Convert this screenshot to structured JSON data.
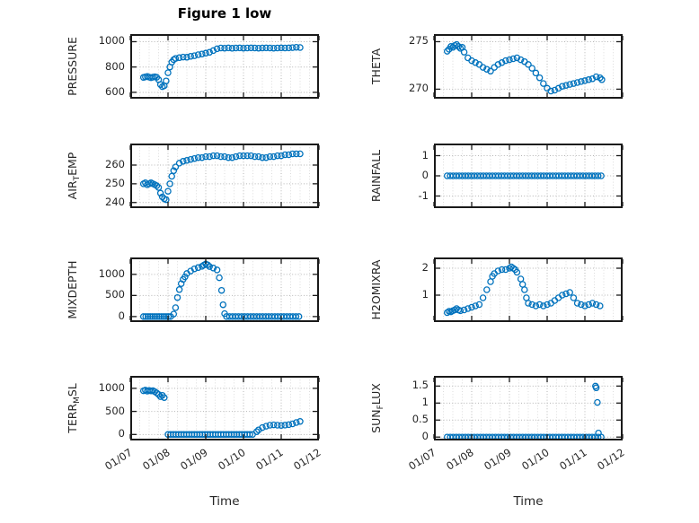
{
  "figure": {
    "window_note": "static matlab-style figure"
  },
  "chart_data": {
    "type": "scatter",
    "title": "Figure 1 low",
    "xlabel": "Time",
    "style": {
      "marker_color": "#0072BD",
      "axis_color": "#1a1a1a",
      "grid_color": "#b5b5b5",
      "minor_grid_color": "#dcdcdc",
      "background": "#ffffff"
    },
    "x_axis": {
      "lim": [
        7,
        12
      ],
      "tick_values": [
        7,
        8,
        9,
        10,
        11,
        12
      ],
      "tick_labels": [
        "01/07",
        "01/08",
        "01/09",
        "01/10",
        "01/11",
        "01/12"
      ]
    },
    "subplots": [
      {
        "id": "pressure",
        "name": "PRESSURE",
        "ylabel_segments": [
          {
            "t": "PRESSURE"
          }
        ],
        "ylim": [
          550,
          1060
        ],
        "yticks": [
          600,
          800,
          1000
        ],
        "points": [
          [
            7.35,
            718
          ],
          [
            7.4,
            722
          ],
          [
            7.45,
            725
          ],
          [
            7.5,
            720
          ],
          [
            7.55,
            716
          ],
          [
            7.6,
            720
          ],
          [
            7.65,
            723
          ],
          [
            7.7,
            719
          ],
          [
            7.75,
            700
          ],
          [
            7.8,
            662
          ],
          [
            7.85,
            645
          ],
          [
            7.9,
            652
          ],
          [
            7.95,
            690
          ],
          [
            8.0,
            755
          ],
          [
            8.05,
            800
          ],
          [
            8.1,
            838
          ],
          [
            8.15,
            858
          ],
          [
            8.2,
            868
          ],
          [
            8.3,
            874
          ],
          [
            8.4,
            879
          ],
          [
            8.5,
            877
          ],
          [
            8.6,
            884
          ],
          [
            8.7,
            889
          ],
          [
            8.8,
            897
          ],
          [
            8.9,
            903
          ],
          [
            9.0,
            909
          ],
          [
            9.1,
            916
          ],
          [
            9.2,
            930
          ],
          [
            9.3,
            944
          ],
          [
            9.4,
            950
          ],
          [
            9.5,
            949
          ],
          [
            9.6,
            951
          ],
          [
            9.7,
            948
          ],
          [
            9.8,
            950
          ],
          [
            9.9,
            951
          ],
          [
            10.0,
            949
          ],
          [
            10.1,
            950
          ],
          [
            10.2,
            951
          ],
          [
            10.3,
            950
          ],
          [
            10.4,
            949
          ],
          [
            10.5,
            950
          ],
          [
            10.6,
            951
          ],
          [
            10.7,
            950
          ],
          [
            10.8,
            949
          ],
          [
            10.9,
            950
          ],
          [
            11.0,
            951
          ],
          [
            11.1,
            950
          ],
          [
            11.2,
            951
          ],
          [
            11.3,
            953
          ],
          [
            11.4,
            956
          ],
          [
            11.5,
            954
          ]
        ],
        "const_runs": []
      },
      {
        "id": "theta",
        "name": "THETA",
        "ylabel_segments": [
          {
            "t": "THETA"
          }
        ],
        "ylim": [
          269,
          275.8
        ],
        "yticks": [
          270,
          275
        ],
        "points": [
          [
            7.35,
            274.0
          ],
          [
            7.4,
            274.2
          ],
          [
            7.45,
            274.5
          ],
          [
            7.5,
            274.4
          ],
          [
            7.55,
            274.6
          ],
          [
            7.6,
            274.7
          ],
          [
            7.65,
            274.5
          ],
          [
            7.7,
            274.3
          ],
          [
            7.75,
            274.4
          ],
          [
            7.8,
            273.9
          ],
          [
            7.9,
            273.3
          ],
          [
            8.0,
            273.0
          ],
          [
            8.1,
            272.8
          ],
          [
            8.2,
            272.6
          ],
          [
            8.3,
            272.3
          ],
          [
            8.4,
            272.1
          ],
          [
            8.5,
            271.9
          ],
          [
            8.6,
            272.3
          ],
          [
            8.7,
            272.6
          ],
          [
            8.8,
            272.8
          ],
          [
            8.9,
            273.0
          ],
          [
            9.0,
            273.1
          ],
          [
            9.1,
            273.2
          ],
          [
            9.2,
            273.3
          ],
          [
            9.3,
            273.1
          ],
          [
            9.4,
            272.9
          ],
          [
            9.5,
            272.6
          ],
          [
            9.6,
            272.2
          ],
          [
            9.7,
            271.7
          ],
          [
            9.8,
            271.2
          ],
          [
            9.9,
            270.6
          ],
          [
            10.0,
            270.1
          ],
          [
            10.1,
            269.8
          ],
          [
            10.2,
            269.9
          ],
          [
            10.3,
            270.1
          ],
          [
            10.4,
            270.3
          ],
          [
            10.5,
            270.4
          ],
          [
            10.6,
            270.5
          ],
          [
            10.7,
            270.6
          ],
          [
            10.8,
            270.7
          ],
          [
            10.9,
            270.8
          ],
          [
            11.0,
            270.9
          ],
          [
            11.1,
            271.0
          ],
          [
            11.2,
            271.1
          ],
          [
            11.3,
            271.3
          ],
          [
            11.4,
            271.2
          ],
          [
            11.45,
            271.0
          ]
        ],
        "const_runs": []
      },
      {
        "id": "air-temp",
        "name": "AIR_TEMP",
        "ylabel_segments": [
          {
            "t": "AIR"
          },
          {
            "t": "T",
            "sub": true
          },
          {
            "t": "EMP"
          }
        ],
        "ylim": [
          237,
          271.5
        ],
        "yticks": [
          240,
          250,
          260
        ],
        "points": [
          [
            7.35,
            250
          ],
          [
            7.4,
            250.5
          ],
          [
            7.45,
            249.5
          ],
          [
            7.5,
            250
          ],
          [
            7.55,
            250.5
          ],
          [
            7.6,
            250
          ],
          [
            7.65,
            249.5
          ],
          [
            7.7,
            249
          ],
          [
            7.75,
            248
          ],
          [
            7.8,
            245
          ],
          [
            7.85,
            243
          ],
          [
            7.9,
            242
          ],
          [
            7.95,
            241.5
          ],
          [
            8.0,
            246
          ],
          [
            8.05,
            250
          ],
          [
            8.1,
            254
          ],
          [
            8.15,
            257
          ],
          [
            8.2,
            259
          ],
          [
            8.3,
            261
          ],
          [
            8.4,
            262
          ],
          [
            8.5,
            262.5
          ],
          [
            8.6,
            263
          ],
          [
            8.7,
            263.5
          ],
          [
            8.8,
            264
          ],
          [
            8.9,
            264
          ],
          [
            9.0,
            264.5
          ],
          [
            9.1,
            264.5
          ],
          [
            9.2,
            265
          ],
          [
            9.3,
            265
          ],
          [
            9.4,
            264.5
          ],
          [
            9.5,
            264.5
          ],
          [
            9.6,
            264
          ],
          [
            9.7,
            264
          ],
          [
            9.8,
            264.5
          ],
          [
            9.9,
            265
          ],
          [
            10.0,
            265
          ],
          [
            10.1,
            265
          ],
          [
            10.2,
            265
          ],
          [
            10.3,
            264.5
          ],
          [
            10.4,
            264.5
          ],
          [
            10.5,
            264
          ],
          [
            10.6,
            264
          ],
          [
            10.7,
            264.5
          ],
          [
            10.8,
            264.5
          ],
          [
            10.9,
            265
          ],
          [
            11.0,
            265
          ],
          [
            11.1,
            265.5
          ],
          [
            11.2,
            265.5
          ],
          [
            11.3,
            266
          ],
          [
            11.4,
            266
          ],
          [
            11.5,
            266
          ]
        ],
        "const_runs": []
      },
      {
        "id": "rainfall",
        "name": "RAINFALL",
        "ylabel_segments": [
          {
            "t": "RAINFALL"
          }
        ],
        "ylim": [
          -1.6,
          1.6
        ],
        "yticks": [
          -1,
          0,
          1
        ],
        "points": [],
        "const_runs": [
          [
            7.35,
            11.5,
            0.08,
            0
          ]
        ]
      },
      {
        "id": "mixdepth",
        "name": "MIXDEPTH",
        "ylabel_segments": [
          {
            "t": "MIXDEPTH"
          }
        ],
        "ylim": [
          -130,
          1400
        ],
        "yticks": [
          0,
          500,
          1000
        ],
        "points": [
          [
            8.15,
            60
          ],
          [
            8.2,
            210
          ],
          [
            8.25,
            450
          ],
          [
            8.3,
            640
          ],
          [
            8.35,
            780
          ],
          [
            8.4,
            880
          ],
          [
            8.45,
            940
          ],
          [
            8.5,
            1020
          ],
          [
            8.6,
            1080
          ],
          [
            8.7,
            1130
          ],
          [
            8.8,
            1160
          ],
          [
            8.9,
            1190
          ],
          [
            8.95,
            1220
          ],
          [
            9.0,
            1245
          ],
          [
            9.05,
            1225
          ],
          [
            9.1,
            1185
          ],
          [
            9.2,
            1150
          ],
          [
            9.3,
            1105
          ],
          [
            9.36,
            920
          ],
          [
            9.42,
            620
          ],
          [
            9.46,
            280
          ],
          [
            9.5,
            70
          ]
        ],
        "const_runs": [
          [
            7.35,
            8.1,
            0.06,
            0
          ],
          [
            9.55,
            11.5,
            0.08,
            0
          ]
        ]
      },
      {
        "id": "h2omixra",
        "name": "H2OMIXRA",
        "ylabel_segments": [
          {
            "t": "H2OMIXRA"
          }
        ],
        "ylim": [
          0,
          2.4
        ],
        "yticks": [
          1,
          2
        ],
        "points": [
          [
            7.35,
            0.35
          ],
          [
            7.4,
            0.4
          ],
          [
            7.45,
            0.38
          ],
          [
            7.5,
            0.42
          ],
          [
            7.55,
            0.45
          ],
          [
            7.6,
            0.5
          ],
          [
            7.65,
            0.45
          ],
          [
            7.7,
            0.42
          ],
          [
            7.8,
            0.45
          ],
          [
            7.9,
            0.5
          ],
          [
            8.0,
            0.55
          ],
          [
            8.1,
            0.6
          ],
          [
            8.2,
            0.65
          ],
          [
            8.3,
            0.9
          ],
          [
            8.4,
            1.2
          ],
          [
            8.5,
            1.5
          ],
          [
            8.55,
            1.7
          ],
          [
            8.6,
            1.8
          ],
          [
            8.7,
            1.9
          ],
          [
            8.8,
            1.95
          ],
          [
            8.9,
            1.95
          ],
          [
            9.0,
            2.0
          ],
          [
            9.05,
            2.05
          ],
          [
            9.1,
            2.0
          ],
          [
            9.15,
            1.95
          ],
          [
            9.2,
            1.85
          ],
          [
            9.3,
            1.6
          ],
          [
            9.35,
            1.4
          ],
          [
            9.4,
            1.2
          ],
          [
            9.45,
            0.9
          ],
          [
            9.5,
            0.7
          ],
          [
            9.6,
            0.65
          ],
          [
            9.7,
            0.6
          ],
          [
            9.8,
            0.65
          ],
          [
            9.9,
            0.6
          ],
          [
            10.0,
            0.65
          ],
          [
            10.1,
            0.7
          ],
          [
            10.2,
            0.8
          ],
          [
            10.3,
            0.9
          ],
          [
            10.4,
            1.0
          ],
          [
            10.5,
            1.05
          ],
          [
            10.6,
            1.1
          ],
          [
            10.7,
            0.9
          ],
          [
            10.8,
            0.7
          ],
          [
            10.9,
            0.65
          ],
          [
            11.0,
            0.6
          ],
          [
            11.1,
            0.65
          ],
          [
            11.2,
            0.7
          ],
          [
            11.3,
            0.65
          ],
          [
            11.4,
            0.6
          ]
        ],
        "const_runs": []
      },
      {
        "id": "terr-msl",
        "name": "TERR_MSL",
        "ylabel_segments": [
          {
            "t": "TERR"
          },
          {
            "t": "M",
            "sub": true
          },
          {
            "t": "SL"
          }
        ],
        "ylim": [
          -130,
          1270
        ],
        "yticks": [
          0,
          500,
          1000
        ],
        "points": [
          [
            7.35,
            948
          ],
          [
            7.4,
            960
          ],
          [
            7.45,
            940
          ],
          [
            7.5,
            955
          ],
          [
            7.55,
            946
          ],
          [
            7.6,
            950
          ],
          [
            7.65,
            928
          ],
          [
            7.7,
            900
          ],
          [
            7.75,
            868
          ],
          [
            7.8,
            820
          ],
          [
            7.85,
            848
          ],
          [
            7.9,
            800
          ],
          [
            10.35,
            60
          ],
          [
            10.4,
            100
          ],
          [
            10.5,
            150
          ],
          [
            10.6,
            180
          ],
          [
            10.7,
            200
          ],
          [
            10.8,
            208
          ],
          [
            10.9,
            200
          ],
          [
            11.0,
            196
          ],
          [
            11.1,
            202
          ],
          [
            11.2,
            212
          ],
          [
            11.3,
            230
          ],
          [
            11.4,
            258
          ],
          [
            11.5,
            282
          ]
        ],
        "const_runs": [
          [
            8.0,
            10.3,
            0.07,
            0
          ]
        ]
      },
      {
        "id": "sun-flux",
        "name": "SUN_FLUX",
        "ylabel_segments": [
          {
            "t": "SUN"
          },
          {
            "t": "F",
            "sub": true
          },
          {
            "t": "LUX"
          }
        ],
        "ylim": [
          -0.1,
          1.8
        ],
        "yticks": [
          0,
          0.5,
          1,
          1.5
        ],
        "points": [
          [
            11.28,
            1.5
          ],
          [
            11.3,
            1.45
          ],
          [
            11.33,
            1.02
          ],
          [
            11.36,
            0.12
          ]
        ],
        "const_runs": [
          [
            7.35,
            11.5,
            0.08,
            0
          ]
        ]
      }
    ]
  }
}
